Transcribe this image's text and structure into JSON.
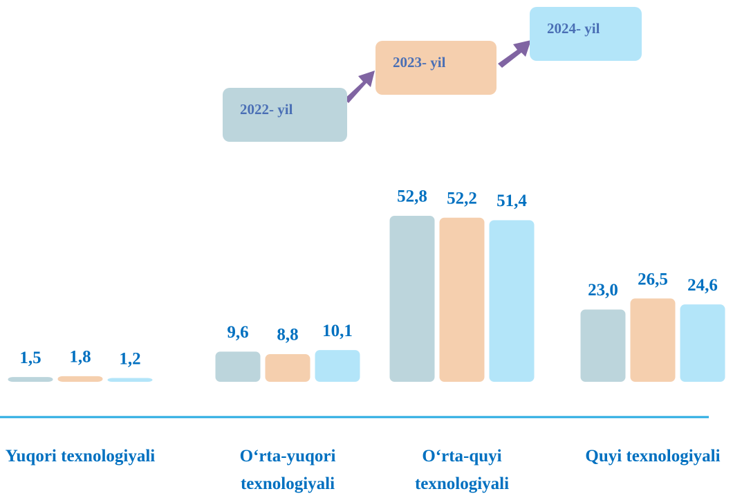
{
  "chart_data": {
    "type": "bar",
    "categories": [
      "Yuqori texnologiyali",
      "O‘rta-yuqori texnologiyali",
      "O‘rta-quyi texnologiyali",
      "Quyi texnologiyali"
    ],
    "series": [
      {
        "name": "2022- yil",
        "color": "#bcd5dc",
        "values": [
          1.5,
          9.6,
          52.8,
          23.0
        ],
        "value_labels": [
          "1,5",
          "9,6",
          "52,8",
          "23,0"
        ]
      },
      {
        "name": "2023- yil",
        "color": "#f5cfae",
        "values": [
          1.8,
          8.8,
          52.2,
          26.5
        ],
        "value_labels": [
          "1,8",
          "8,8",
          "52,2",
          "26,5"
        ]
      },
      {
        "name": "2024- yil",
        "color": "#b3e5f9",
        "values": [
          1.2,
          10.1,
          51.4,
          24.6
        ],
        "value_labels": [
          "1,2",
          "10,1",
          "51,4",
          "24,6"
        ]
      }
    ]
  }
}
